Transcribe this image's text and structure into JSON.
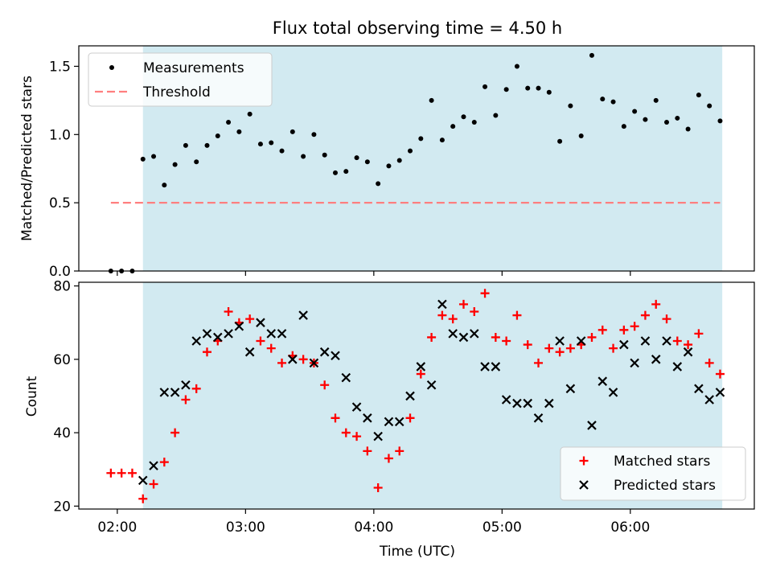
{
  "figure": {
    "title": "Flux total observing time = 4.50 h"
  },
  "chart_data": [
    {
      "type": "scatter",
      "title": "Flux total observing time = 4.50 h",
      "xlabel": "",
      "ylabel": "Matched/Predicted stars",
      "x_tick_labels": [
        "02:00",
        "03:00",
        "04:00",
        "05:00",
        "06:00"
      ],
      "y_ticks": [
        0.0,
        0.5,
        1.0,
        1.5
      ],
      "y_tick_labels": [
        "0.0",
        "0.5",
        "1.0",
        "1.5"
      ],
      "ylim": [
        0.0,
        1.65
      ],
      "xlim_minutes": [
        102,
        418
      ],
      "shaded_region": {
        "start": "02:12",
        "end": "06:43",
        "color": "#add8e6"
      },
      "legend": {
        "placement": "top-left",
        "entries": [
          "Measurements",
          "Threshold"
        ]
      },
      "series": [
        {
          "name": "Measurements",
          "marker": "dot",
          "color": "#000000",
          "points": [
            [
              "01:57",
              0.0
            ],
            [
              "02:02",
              0.0
            ],
            [
              "02:07",
              0.0
            ],
            [
              "02:12",
              0.82
            ],
            [
              "02:17",
              0.84
            ],
            [
              "02:22",
              0.63
            ],
            [
              "02:27",
              0.78
            ],
            [
              "02:32",
              0.92
            ],
            [
              "02:37",
              0.8
            ],
            [
              "02:42",
              0.92
            ],
            [
              "02:47",
              0.99
            ],
            [
              "02:52",
              1.09
            ],
            [
              "02:57",
              1.02
            ],
            [
              "03:02",
              1.15
            ],
            [
              "03:07",
              0.93
            ],
            [
              "03:12",
              0.94
            ],
            [
              "03:17",
              0.88
            ],
            [
              "03:22",
              1.02
            ],
            [
              "03:27",
              0.84
            ],
            [
              "03:32",
              1.0
            ],
            [
              "03:37",
              0.85
            ],
            [
              "03:42",
              0.72
            ],
            [
              "03:47",
              0.73
            ],
            [
              "03:52",
              0.83
            ],
            [
              "03:57",
              0.8
            ],
            [
              "04:02",
              0.64
            ],
            [
              "04:07",
              0.77
            ],
            [
              "04:12",
              0.81
            ],
            [
              "04:17",
              0.88
            ],
            [
              "04:22",
              0.97
            ],
            [
              "04:27",
              1.25
            ],
            [
              "04:32",
              0.96
            ],
            [
              "04:37",
              1.06
            ],
            [
              "04:42",
              1.13
            ],
            [
              "04:47",
              1.09
            ],
            [
              "04:52",
              1.35
            ],
            [
              "04:57",
              1.14
            ],
            [
              "05:02",
              1.33
            ],
            [
              "05:07",
              1.5
            ],
            [
              "05:12",
              1.34
            ],
            [
              "05:17",
              1.34
            ],
            [
              "05:22",
              1.31
            ],
            [
              "05:27",
              0.95
            ],
            [
              "05:32",
              1.21
            ],
            [
              "05:37",
              0.99
            ],
            [
              "05:42",
              1.58
            ],
            [
              "05:47",
              1.26
            ],
            [
              "05:52",
              1.24
            ],
            [
              "05:57",
              1.06
            ],
            [
              "06:02",
              1.17
            ],
            [
              "06:07",
              1.11
            ],
            [
              "06:12",
              1.25
            ],
            [
              "06:17",
              1.09
            ],
            [
              "06:22",
              1.12
            ],
            [
              "06:27",
              1.04
            ],
            [
              "06:32",
              1.29
            ],
            [
              "06:37",
              1.21
            ],
            [
              "06:42",
              1.1
            ]
          ]
        },
        {
          "name": "Threshold",
          "marker": "dashed-line",
          "color": "#ff7f7f",
          "points": [
            [
              "01:57",
              0.5
            ],
            [
              "06:42",
              0.5
            ]
          ]
        }
      ]
    },
    {
      "type": "scatter",
      "title": "",
      "xlabel": "Time (UTC)",
      "ylabel": "Count",
      "x_tick_labels": [
        "02:00",
        "03:00",
        "04:00",
        "05:00",
        "06:00"
      ],
      "y_ticks": [
        20,
        40,
        60,
        80
      ],
      "y_tick_labels": [
        "20",
        "40",
        "60",
        "80"
      ],
      "ylim": [
        19.2,
        81.0
      ],
      "xlim_minutes": [
        102,
        418
      ],
      "shaded_region": {
        "start": "02:12",
        "end": "06:43",
        "color": "#add8e6"
      },
      "legend": {
        "placement": "bottom-right",
        "entries": [
          "Matched stars",
          "Predicted stars"
        ]
      },
      "series": [
        {
          "name": "Matched stars",
          "marker": "plus",
          "color": "#ff0000",
          "points": [
            [
              "01:57",
              29
            ],
            [
              "02:02",
              29
            ],
            [
              "02:07",
              29
            ],
            [
              "02:12",
              22
            ],
            [
              "02:17",
              26
            ],
            [
              "02:22",
              32
            ],
            [
              "02:27",
              40
            ],
            [
              "02:32",
              49
            ],
            [
              "02:37",
              52
            ],
            [
              "02:42",
              62
            ],
            [
              "02:47",
              65
            ],
            [
              "02:52",
              73
            ],
            [
              "02:57",
              70
            ],
            [
              "03:02",
              71
            ],
            [
              "03:07",
              65
            ],
            [
              "03:12",
              63
            ],
            [
              "03:17",
              59
            ],
            [
              "03:22",
              61
            ],
            [
              "03:27",
              60
            ],
            [
              "03:32",
              59
            ],
            [
              "03:37",
              53
            ],
            [
              "03:42",
              44
            ],
            [
              "03:47",
              40
            ],
            [
              "03:52",
              39
            ],
            [
              "03:57",
              35
            ],
            [
              "04:02",
              25
            ],
            [
              "04:07",
              33
            ],
            [
              "04:12",
              35
            ],
            [
              "04:17",
              44
            ],
            [
              "04:22",
              56
            ],
            [
              "04:27",
              66
            ],
            [
              "04:32",
              72
            ],
            [
              "04:37",
              71
            ],
            [
              "04:42",
              75
            ],
            [
              "04:47",
              73
            ],
            [
              "04:52",
              78
            ],
            [
              "04:57",
              66
            ],
            [
              "05:02",
              65
            ],
            [
              "05:07",
              72
            ],
            [
              "05:12",
              64
            ],
            [
              "05:17",
              59
            ],
            [
              "05:22",
              63
            ],
            [
              "05:27",
              62
            ],
            [
              "05:32",
              63
            ],
            [
              "05:37",
              64
            ],
            [
              "05:42",
              66
            ],
            [
              "05:47",
              68
            ],
            [
              "05:52",
              63
            ],
            [
              "05:57",
              68
            ],
            [
              "06:02",
              69
            ],
            [
              "06:07",
              72
            ],
            [
              "06:12",
              75
            ],
            [
              "06:17",
              71
            ],
            [
              "06:22",
              65
            ],
            [
              "06:27",
              64
            ],
            [
              "06:32",
              67
            ],
            [
              "06:37",
              59
            ],
            [
              "06:42",
              56
            ]
          ]
        },
        {
          "name": "Predicted stars",
          "marker": "x",
          "color": "#000000",
          "points": [
            [
              "02:12",
              27
            ],
            [
              "02:17",
              31
            ],
            [
              "02:22",
              51
            ],
            [
              "02:27",
              51
            ],
            [
              "02:32",
              53
            ],
            [
              "02:37",
              65
            ],
            [
              "02:42",
              67
            ],
            [
              "02:47",
              66
            ],
            [
              "02:52",
              67
            ],
            [
              "02:57",
              69
            ],
            [
              "03:02",
              62
            ],
            [
              "03:07",
              70
            ],
            [
              "03:12",
              67
            ],
            [
              "03:17",
              67
            ],
            [
              "03:22",
              60
            ],
            [
              "03:27",
              72
            ],
            [
              "03:32",
              59
            ],
            [
              "03:37",
              62
            ],
            [
              "03:42",
              61
            ],
            [
              "03:47",
              55
            ],
            [
              "03:52",
              47
            ],
            [
              "03:57",
              44
            ],
            [
              "04:02",
              39
            ],
            [
              "04:07",
              43
            ],
            [
              "04:12",
              43
            ],
            [
              "04:17",
              50
            ],
            [
              "04:22",
              58
            ],
            [
              "04:27",
              53
            ],
            [
              "04:32",
              75
            ],
            [
              "04:37",
              67
            ],
            [
              "04:42",
              66
            ],
            [
              "04:47",
              67
            ],
            [
              "04:52",
              58
            ],
            [
              "04:57",
              58
            ],
            [
              "05:02",
              49
            ],
            [
              "05:07",
              48
            ],
            [
              "05:12",
              48
            ],
            [
              "05:17",
              44
            ],
            [
              "05:22",
              48
            ],
            [
              "05:27",
              65
            ],
            [
              "05:32",
              52
            ],
            [
              "05:37",
              65
            ],
            [
              "05:42",
              42
            ],
            [
              "05:47",
              54
            ],
            [
              "05:52",
              51
            ],
            [
              "05:57",
              64
            ],
            [
              "06:02",
              59
            ],
            [
              "06:07",
              65
            ],
            [
              "06:12",
              60
            ],
            [
              "06:17",
              65
            ],
            [
              "06:22",
              58
            ],
            [
              "06:27",
              62
            ],
            [
              "06:32",
              52
            ],
            [
              "06:37",
              49
            ],
            [
              "06:42",
              51
            ]
          ]
        }
      ]
    }
  ]
}
